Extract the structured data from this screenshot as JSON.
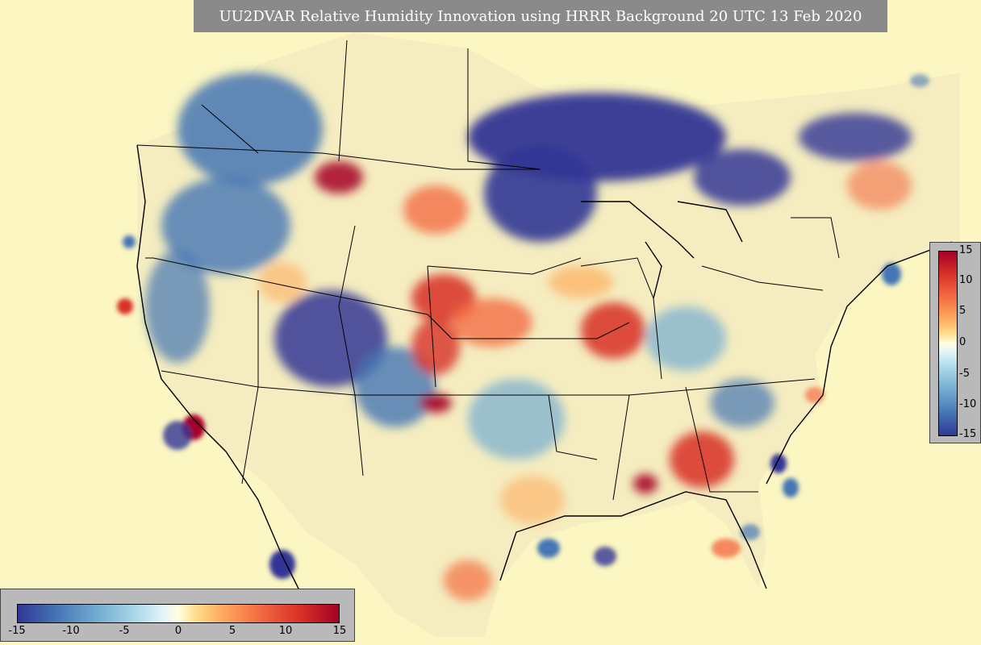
{
  "title": "UU2DVAR Relative Humidity Innovation using HRRR Background 20 UTC 13 Feb 2020",
  "vertical_colorbar": {
    "ticks": [
      {
        "label": "15",
        "value": 15
      },
      {
        "label": "10",
        "value": 10
      },
      {
        "label": "5",
        "value": 5
      },
      {
        "label": "0",
        "value": 0
      },
      {
        "label": "-5",
        "value": -5
      },
      {
        "label": "-10",
        "value": -10
      },
      {
        "label": "-15",
        "value": -15
      }
    ]
  },
  "horizontal_colorbar": {
    "ticks": [
      {
        "label": "-15",
        "value": -15
      },
      {
        "label": "-10",
        "value": -10
      },
      {
        "label": "-5",
        "value": -5
      },
      {
        "label": "0",
        "value": 0
      },
      {
        "label": "5",
        "value": 5
      },
      {
        "label": "10",
        "value": 10
      },
      {
        "label": "15",
        "value": 15
      }
    ]
  },
  "colors": {
    "negative_extreme": "#313695",
    "negative_mid": "#74add1",
    "neutral": "#ffffe0",
    "positive_mid": "#fdae61",
    "positive_extreme": "#a50026",
    "ocean_background": "#fbf6c2",
    "panel_gray": "#b9b9b9",
    "title_gray": "#8a8a8a"
  }
}
